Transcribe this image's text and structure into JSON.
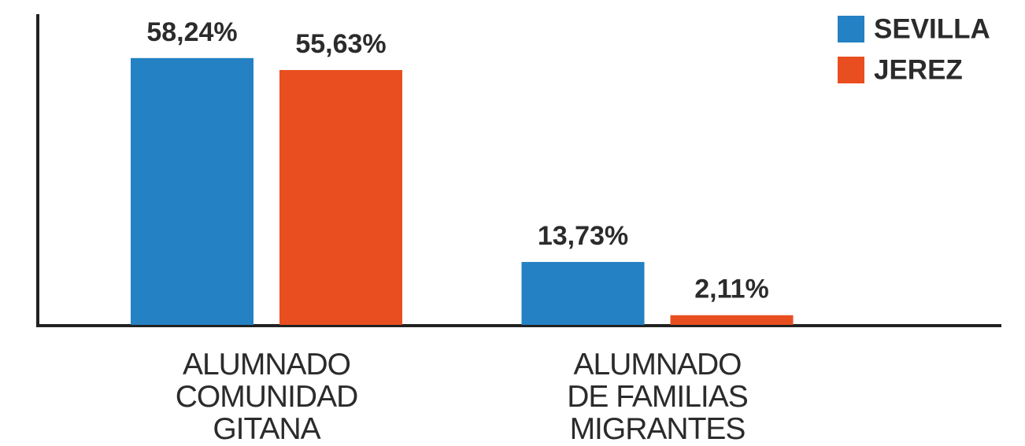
{
  "chart_data": {
    "type": "bar",
    "categories": [
      "ALUMNADO\nCOMUNIDAD\nGITANA",
      "ALUMNADO\nDE FAMILIAS\nMIGRANTES"
    ],
    "series": [
      {
        "name": "SEVILLA",
        "color": "#2481c3",
        "values": [
          58.24,
          13.73
        ],
        "value_labels": [
          "58,24%",
          "13,73%"
        ]
      },
      {
        "name": "JEREZ",
        "color": "#e84e1f",
        "values": [
          55.63,
          2.11
        ],
        "value_labels": [
          "55,63%",
          "2,11%"
        ]
      }
    ],
    "ylim": [
      0,
      68
    ],
    "legend": "top-right"
  }
}
